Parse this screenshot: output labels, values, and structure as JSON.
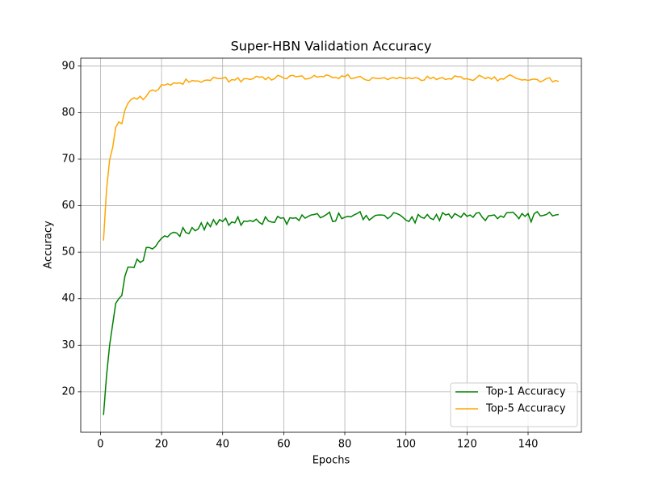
{
  "chart_data": {
    "type": "line",
    "title": "Super-HBN Validation Accuracy",
    "x_label": "Epochs",
    "y_label": "Accuracy",
    "x": [
      1,
      2,
      3,
      4,
      5,
      6,
      7,
      8,
      9,
      10,
      11,
      12,
      13,
      14,
      15,
      16,
      17,
      18,
      19,
      20,
      21,
      22,
      23,
      24,
      25,
      26,
      27,
      28,
      29,
      30,
      31,
      32,
      33,
      34,
      35,
      36,
      37,
      38,
      39,
      40,
      41,
      42,
      43,
      44,
      45,
      46,
      47,
      48,
      49,
      50,
      51,
      52,
      53,
      54,
      55,
      56,
      57,
      58,
      59,
      60,
      61,
      62,
      63,
      64,
      65,
      66,
      67,
      68,
      69,
      70,
      71,
      72,
      73,
      74,
      75,
      76,
      77,
      78,
      79,
      80,
      81,
      82,
      83,
      84,
      85,
      86,
      87,
      88,
      89,
      90,
      91,
      92,
      93,
      94,
      95,
      96,
      97,
      98,
      99,
      100,
      101,
      102,
      103,
      104,
      105,
      106,
      107,
      108,
      109,
      110,
      111,
      112,
      113,
      114,
      115,
      116,
      117,
      118,
      119,
      120,
      121,
      122,
      123,
      124,
      125,
      126,
      127,
      128,
      129,
      130,
      131,
      132,
      133,
      134,
      135,
      136,
      137,
      138,
      139,
      140,
      141,
      142,
      143,
      144,
      145,
      146,
      147,
      148,
      149,
      150
    ],
    "series": [
      {
        "name": "Top-1 Accuracy",
        "color": "#008000",
        "values": [
          15,
          23.5,
          30,
          34.5,
          39,
          40,
          40.7,
          44.8,
          46.8,
          46.8,
          46.7,
          48.5,
          47.8,
          48.2,
          51,
          51,
          50.7,
          51.2,
          52.2,
          53,
          53.5,
          53.3,
          54,
          54.3,
          54.1,
          53.4,
          55.3,
          54.2,
          54,
          55.3,
          54.6,
          55,
          56.3,
          54.8,
          56.4,
          55.5,
          57,
          55.9,
          57,
          56.6,
          57.3,
          55.8,
          56.5,
          56.3,
          57.6,
          55.8,
          56.7,
          56.6,
          56.8,
          56.6,
          57.1,
          56.4,
          56,
          57.6,
          56.7,
          56.5,
          56.4,
          57.7,
          57.3,
          57.4,
          56,
          57.4,
          57.3,
          57.4,
          56.8,
          58,
          57.3,
          57.7,
          58,
          58.1,
          58.3,
          57.4,
          57.7,
          58.1,
          58.6,
          56.6,
          56.7,
          58.4,
          57.2,
          57.5,
          57.7,
          57.6,
          58,
          58.3,
          58.7,
          57,
          57.9,
          56.9,
          57.4,
          57.9,
          58,
          58,
          57.9,
          57.2,
          57.7,
          58.5,
          58.3,
          58,
          57.5,
          56.9,
          56.6,
          57.6,
          56.3,
          58.1,
          57.5,
          57.3,
          58.1,
          57.3,
          57,
          58.1,
          56.8,
          58.5,
          58,
          58.2,
          57.3,
          58.3,
          57.9,
          57.5,
          58.4,
          57.7,
          58,
          57.5,
          58.4,
          58.5,
          57.5,
          56.8,
          57.8,
          57.9,
          58,
          57.2,
          57.8,
          57.5,
          58.5,
          58.5,
          58.6,
          58,
          57.2,
          58.3,
          57.7,
          58.3,
          56.5,
          58.3,
          58.7,
          57.8,
          57.9,
          58.1,
          58.6,
          57.8,
          58,
          58.1
        ]
      },
      {
        "name": "Top-5 Accuracy",
        "color": "#ffa500",
        "values": [
          52.5,
          63.5,
          69.8,
          72.5,
          76.8,
          78,
          77.6,
          80.5,
          82,
          82.8,
          83.2,
          82.9,
          83.5,
          82.8,
          83.5,
          84.5,
          84.9,
          84.6,
          85,
          86,
          85.9,
          86.2,
          85.9,
          86.4,
          86.3,
          86.4,
          86.1,
          87.2,
          86.5,
          86.9,
          86.8,
          86.8,
          86.5,
          86.9,
          87,
          86.9,
          87.6,
          87.4,
          87.3,
          87.4,
          87.6,
          86.6,
          87.1,
          87,
          87.5,
          86.6,
          87.3,
          87.3,
          87.1,
          87.3,
          87.8,
          87.6,
          87.7,
          87.1,
          87.6,
          87,
          87.3,
          88,
          87.8,
          87.4,
          87.3,
          87.9,
          88,
          87.7,
          87.8,
          87.9,
          87.2,
          87.3,
          87.5,
          88,
          87.6,
          87.8,
          87.7,
          88.1,
          87.9,
          87.5,
          87.6,
          87.3,
          87.9,
          87.7,
          88.2,
          87.3,
          87.4,
          87.6,
          87.8,
          87.3,
          87,
          86.9,
          87.5,
          87.4,
          87.3,
          87.4,
          87.5,
          87.1,
          87.4,
          87.5,
          87.3,
          87.6,
          87.4,
          87.3,
          87.5,
          87.3,
          87.5,
          87.4,
          86.9,
          87,
          87.8,
          87.3,
          87.6,
          87.1,
          87.4,
          87.5,
          87.1,
          87.3,
          87.2,
          87.9,
          87.7,
          87.7,
          87.2,
          87.3,
          87.1,
          86.9,
          87.4,
          88,
          87.7,
          87.3,
          87.6,
          87.2,
          87.7,
          86.8,
          87.3,
          87.2,
          87.7,
          88.1,
          87.8,
          87.4,
          87.2,
          87,
          87.1,
          86.9,
          87.1,
          87.2,
          87.1,
          86.6,
          86.9,
          87.3,
          87.5,
          86.6,
          86.9,
          86.7
        ]
      }
    ],
    "xlim": [
      -6.45,
      157.45
    ],
    "xticks": [
      0,
      20,
      40,
      60,
      80,
      100,
      120,
      140
    ],
    "ylim": [
      11.3,
      91.7
    ],
    "yticks": [
      20,
      30,
      40,
      50,
      60,
      70,
      80,
      90
    ],
    "grid": true,
    "legend": "lower right"
  }
}
